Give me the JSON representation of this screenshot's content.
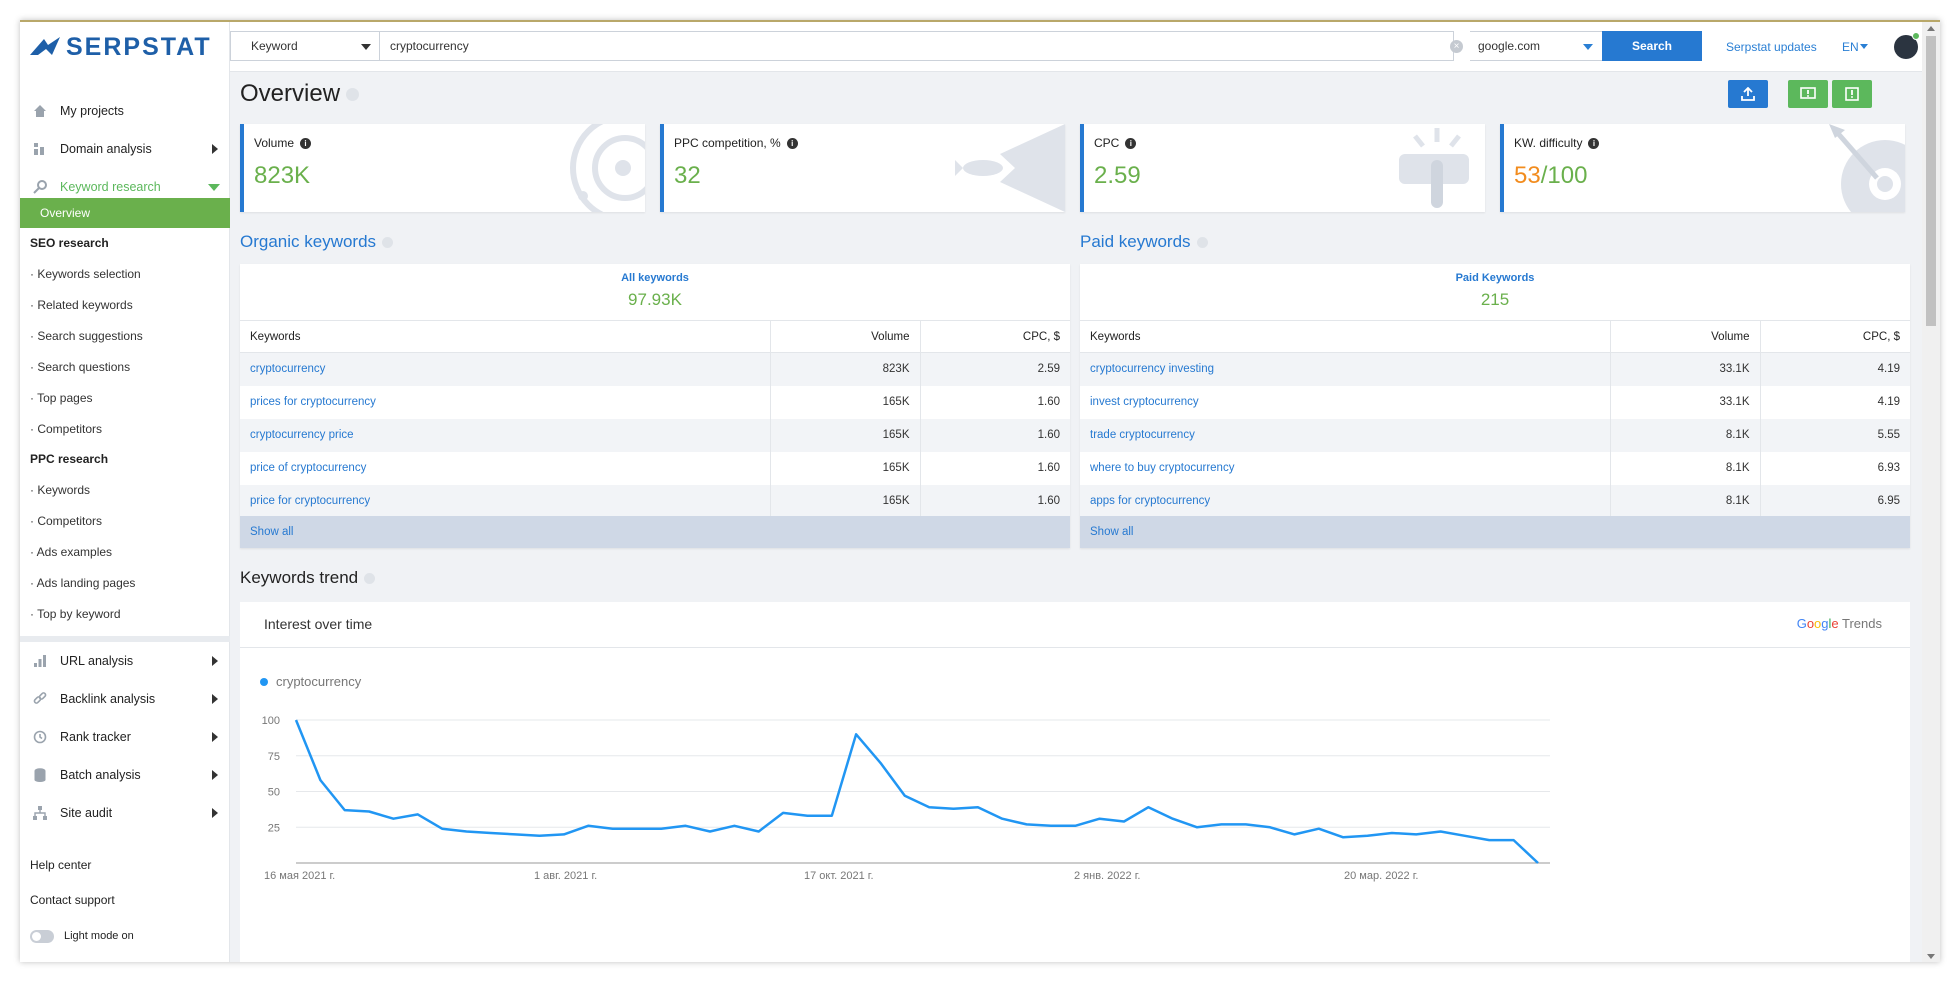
{
  "app": {
    "brand": "SERPSTAT"
  },
  "nav": {
    "main_top": [
      {
        "label": "My projects",
        "icon": "home-icon"
      },
      {
        "label": "Domain analysis",
        "icon": "chart-icon"
      },
      {
        "label": "Keyword research",
        "icon": "key-icon"
      }
    ],
    "active_item": "Overview",
    "seo_head": "SEO research",
    "seo_items": [
      "Keywords selection",
      "Related keywords",
      "Search suggestions",
      "Search questions",
      "Top pages",
      "Competitors"
    ],
    "ppc_head": "PPC research",
    "ppc_items": [
      "Keywords",
      "Competitors",
      "Ads examples",
      "Ads landing pages",
      "Top by keyword"
    ],
    "main_bottom": [
      {
        "label": "URL analysis",
        "icon": "bar-chart-icon"
      },
      {
        "label": "Backlink analysis",
        "icon": "link-icon"
      },
      {
        "label": "Rank tracker",
        "icon": "history-icon"
      },
      {
        "label": "Batch analysis",
        "icon": "database-icon"
      },
      {
        "label": "Site audit",
        "icon": "sitemap-icon"
      }
    ],
    "help_center": "Help center",
    "contact_support": "Contact support",
    "light_mode": "Light mode on"
  },
  "topbar": {
    "search_type": "Keyword",
    "query": "cryptocurrency",
    "engine": "google.com",
    "search_button": "Search",
    "updates_link": "Serpstat updates",
    "language": "EN"
  },
  "page": {
    "title": "Overview"
  },
  "metrics": [
    {
      "label": "Volume",
      "value": "823K"
    },
    {
      "label": "PPC competition, %",
      "value": "32"
    },
    {
      "label": "CPC",
      "value": "2.59"
    },
    {
      "label": "KW. difficulty",
      "value": "53",
      "suffix": "/100"
    }
  ],
  "organic": {
    "title": "Organic keywords",
    "panel_title": "All keywords",
    "total": "97.93K",
    "headers": [
      "Keywords",
      "Volume",
      "CPC, $"
    ],
    "rows": [
      [
        "cryptocurrency",
        "823K",
        "2.59"
      ],
      [
        "prices for cryptocurrency",
        "165K",
        "1.60"
      ],
      [
        "cryptocurrency price",
        "165K",
        "1.60"
      ],
      [
        "price of cryptocurrency",
        "165K",
        "1.60"
      ],
      [
        "price for cryptocurrency",
        "165K",
        "1.60"
      ]
    ],
    "show_all": "Show all"
  },
  "paid": {
    "title": "Paid keywords",
    "panel_title": "Paid Keywords",
    "total": "215",
    "headers": [
      "Keywords",
      "Volume",
      "CPC, $"
    ],
    "rows": [
      [
        "cryptocurrency investing",
        "33.1K",
        "4.19"
      ],
      [
        "invest cryptocurrency",
        "33.1K",
        "4.19"
      ],
      [
        "trade cryptocurrency",
        "8.1K",
        "5.55"
      ],
      [
        "where to buy cryptocurrency",
        "8.1K",
        "6.93"
      ],
      [
        "apps for cryptocurrency",
        "8.1K",
        "6.95"
      ]
    ],
    "show_all": "Show all"
  },
  "trend": {
    "title": "Keywords trend",
    "subtitle": "Interest over time",
    "source": {
      "g1": "G",
      "g2": "o",
      "g3": "o",
      "g4": "g",
      "g5": "l",
      "g6": "e",
      "rest": " Trends"
    }
  },
  "chart_data": {
    "type": "line",
    "x_labels": [
      "16 мая 2021 г.",
      "1 авг. 2021 г.",
      "17 окт. 2021 г.",
      "2 янв. 2022 г.",
      "20 мар. 2022 г."
    ],
    "y_ticks": [
      100,
      75,
      50,
      25
    ],
    "ylim": [
      0,
      100
    ],
    "series": [
      {
        "name": "cryptocurrency",
        "color": "#2196f3",
        "values": [
          100,
          58,
          37,
          36,
          31,
          34,
          24,
          22,
          21,
          20,
          19,
          20,
          26,
          24,
          24,
          24,
          26,
          22,
          26,
          22,
          35,
          33,
          33,
          90,
          70,
          47,
          39,
          38,
          39,
          31,
          27,
          26,
          26,
          31,
          29,
          39,
          31,
          25,
          27,
          27,
          25,
          20,
          24,
          18,
          19,
          21,
          20,
          22,
          19,
          16,
          16,
          0
        ]
      }
    ],
    "grid": true,
    "legend": "top-left"
  }
}
